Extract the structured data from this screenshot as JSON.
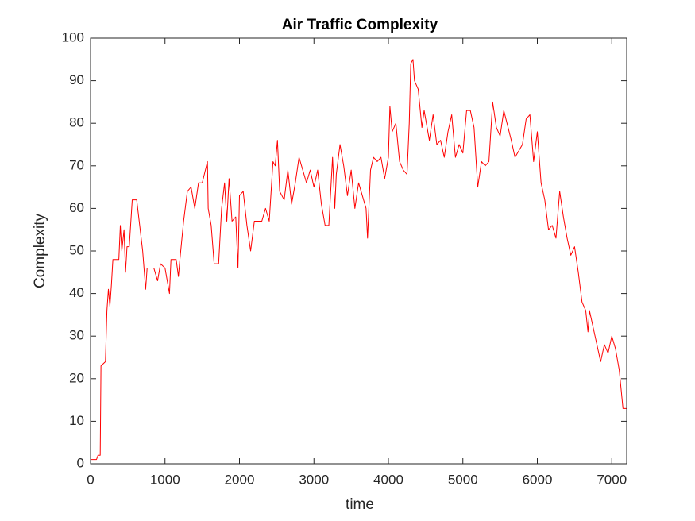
{
  "chart_data": {
    "type": "line",
    "title": "Air Traffic Complexity",
    "x_label": "time",
    "y_label": "Complexity",
    "color": "#ff0000",
    "x": [
      0,
      80,
      100,
      130,
      140,
      200,
      220,
      240,
      260,
      280,
      300,
      380,
      400,
      420,
      450,
      470,
      490,
      520,
      560,
      620,
      660,
      700,
      740,
      760,
      850,
      900,
      940,
      1000,
      1060,
      1080,
      1150,
      1180,
      1200,
      1250,
      1300,
      1350,
      1400,
      1450,
      1500,
      1570,
      1580,
      1620,
      1660,
      1720,
      1760,
      1800,
      1830,
      1860,
      1900,
      1950,
      1980,
      2000,
      2050,
      2100,
      2150,
      2200,
      2300,
      2350,
      2400,
      2450,
      2480,
      2510,
      2540,
      2600,
      2650,
      2700,
      2750,
      2800,
      2850,
      2900,
      2950,
      3000,
      3050,
      3100,
      3150,
      3200,
      3250,
      3280,
      3300,
      3350,
      3400,
      3450,
      3500,
      3550,
      3600,
      3650,
      3700,
      3720,
      3760,
      3800,
      3850,
      3900,
      3950,
      4000,
      4020,
      4050,
      4100,
      4150,
      4200,
      4250,
      4280,
      4300,
      4330,
      4350,
      4400,
      4450,
      4480,
      4550,
      4600,
      4650,
      4700,
      4750,
      4800,
      4850,
      4900,
      4950,
      5000,
      5050,
      5100,
      5150,
      5200,
      5250,
      5300,
      5350,
      5400,
      5450,
      5500,
      5550,
      5650,
      5700,
      5800,
      5850,
      5900,
      5950,
      6000,
      6050,
      6100,
      6150,
      6200,
      6250,
      6300,
      6350,
      6400,
      6450,
      6500,
      6550,
      6600,
      6650,
      6680,
      6700,
      6750,
      6800,
      6850,
      6900,
      6950,
      7000,
      7050,
      7100,
      7150,
      7200
    ],
    "values": [
      1,
      1,
      2,
      2,
      23,
      24,
      36,
      41,
      37,
      42,
      48,
      48,
      56,
      50,
      55,
      45,
      51,
      51,
      62,
      62,
      56,
      50,
      41,
      46,
      46,
      43,
      47,
      46,
      40,
      48,
      48,
      44,
      48,
      57,
      64,
      65,
      60,
      66,
      66,
      71,
      60,
      56,
      47,
      47,
      60,
      66,
      57,
      67,
      57,
      58,
      46,
      63,
      64,
      56,
      50,
      57,
      57,
      60,
      57,
      71,
      70,
      76,
      64,
      62,
      69,
      61,
      66,
      72,
      69,
      66,
      69,
      65,
      69,
      61,
      56,
      56,
      72,
      60,
      68,
      75,
      70,
      63,
      69,
      60,
      66,
      63,
      60,
      53,
      69,
      72,
      71,
      72,
      67,
      72,
      84,
      78,
      80,
      71,
      69,
      68,
      80,
      94,
      95,
      90,
      88,
      79,
      83,
      76,
      82,
      75,
      76,
      72,
      78,
      82,
      72,
      75,
      73,
      83,
      83,
      79,
      65,
      71,
      70,
      71,
      85,
      79,
      77,
      83,
      76,
      72,
      75,
      81,
      82,
      71,
      78,
      66,
      62,
      55,
      56,
      53,
      64,
      58,
      53,
      49,
      51,
      45,
      38,
      36,
      31,
      36,
      32,
      28,
      24,
      28,
      26,
      30,
      27,
      22,
      13,
      13
    ],
    "xlim": [
      0,
      7200
    ],
    "ylim": [
      0,
      100
    ],
    "xticks": [
      0,
      1000,
      2000,
      3000,
      4000,
      5000,
      6000,
      7000
    ],
    "yticks": [
      0,
      10,
      20,
      30,
      40,
      50,
      60,
      70,
      80,
      90,
      100
    ]
  }
}
